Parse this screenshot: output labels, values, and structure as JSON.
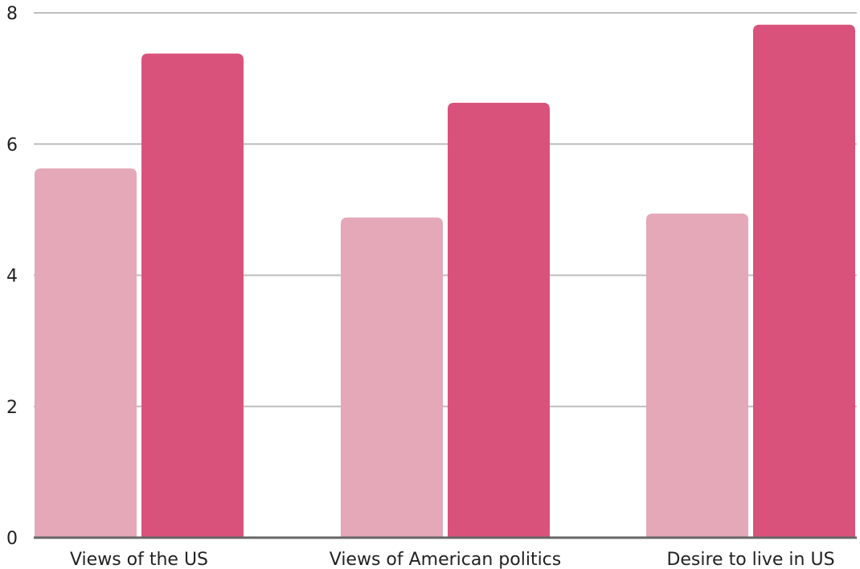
{
  "chart_data": {
    "type": "bar",
    "categories": [
      "Views of the US",
      "Views of American politics",
      "Desire to live in US"
    ],
    "series": [
      {
        "color": "#e4a8b8",
        "values": [
          5.63,
          4.88,
          4.94
        ]
      },
      {
        "color": "#d9527b",
        "values": [
          7.38,
          6.63,
          7.82
        ]
      }
    ],
    "yticks": [
      0,
      2,
      4,
      6,
      8
    ],
    "ylim": [
      0,
      8
    ],
    "grid": true,
    "legend": "none",
    "title": "",
    "xlabel": "",
    "ylabel": ""
  }
}
